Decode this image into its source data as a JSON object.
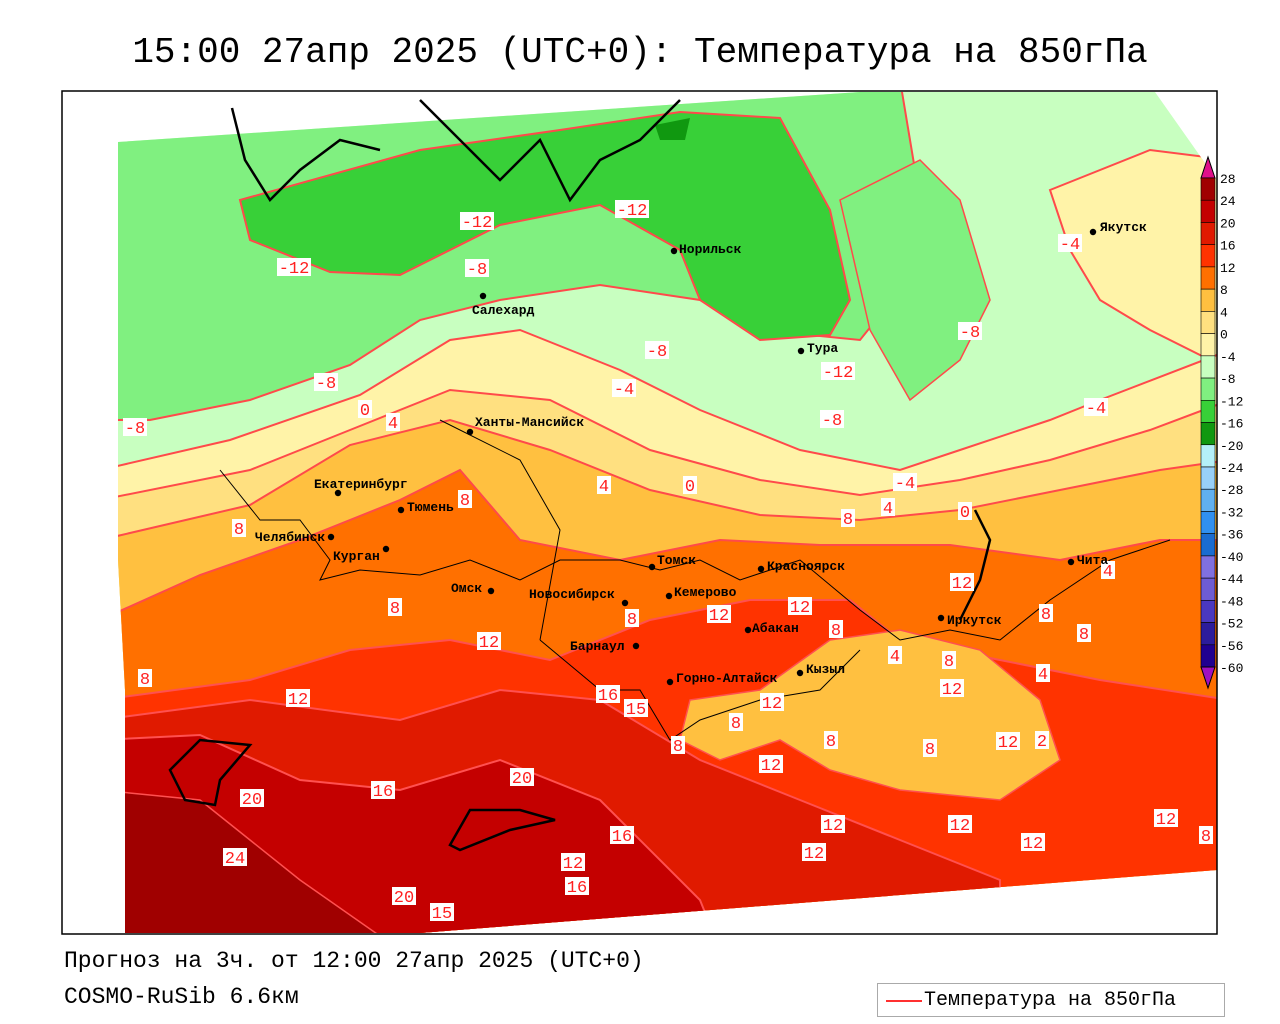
{
  "title": "15:00 27апр 2025 (UTC+0): Температура на 850гПа",
  "footer": {
    "forecast": "Прогноз на 3ч. от 12:00 27апр 2025 (UTC+0)",
    "model": "COSMO-RuSib 6.6км"
  },
  "legend": {
    "label": "Температура на 850гПа",
    "line_color": "#ff3030"
  },
  "colorbar": {
    "ticks": [
      "28",
      "24",
      "20",
      "16",
      "12",
      "8",
      "4",
      "0",
      "-4",
      "-8",
      "-12",
      "-16",
      "-20",
      "-24",
      "-28",
      "-32",
      "-36",
      "-40",
      "-44",
      "-48",
      "-52",
      "-56",
      "-60"
    ],
    "colors": [
      "#a00000",
      "#c40000",
      "#e01a00",
      "#ff3300",
      "#ff7000",
      "#ffc040",
      "#ffe080",
      "#fff3a8",
      "#c8ffc0",
      "#80f080",
      "#38d038",
      "#109810",
      "#b4f0f8",
      "#98d0f8",
      "#60b0f0",
      "#3090f0",
      "#1a6cd0",
      "#8070e0",
      "#6e5cd4",
      "#4a38c0",
      "#2c1c9c",
      "#200090"
    ],
    "over_color": "#e0108a",
    "under_color": "#a010c0"
  },
  "cities": [
    "Якутск",
    "Норильск",
    "Салехард",
    "Тура",
    "Ханты-Мансийск",
    "Екатеринбург",
    "Тюмень",
    "Челябинск",
    "Курган",
    "Омск",
    "Новосибирск",
    "Томск",
    "Кемерово",
    "Красноярск",
    "Барнаул",
    "Абакан",
    "Горно-Алтайск",
    "Кызыл",
    "Иркутск",
    "Чита"
  ],
  "contour_labels": [
    "-12",
    "-12",
    "-12",
    "-8",
    "-8",
    "-8",
    "-12",
    "-8",
    "-4",
    "-4",
    "-4",
    "-4",
    "-8",
    "0",
    "4",
    "8",
    "4",
    "0",
    "4",
    "0",
    "8",
    "-8",
    "8",
    "8",
    "12",
    "8",
    "12",
    "12",
    "8",
    "12",
    "4",
    "8",
    "8",
    "4",
    "8",
    "12",
    "4",
    "8",
    "12",
    "16",
    "15",
    "12",
    "8",
    "8",
    "12",
    "8",
    "8",
    "12",
    "2",
    "20",
    "16",
    "20",
    "24",
    "16",
    "12",
    "12",
    "12",
    "12",
    "12",
    "8",
    "12",
    "16",
    "20",
    "15"
  ]
}
